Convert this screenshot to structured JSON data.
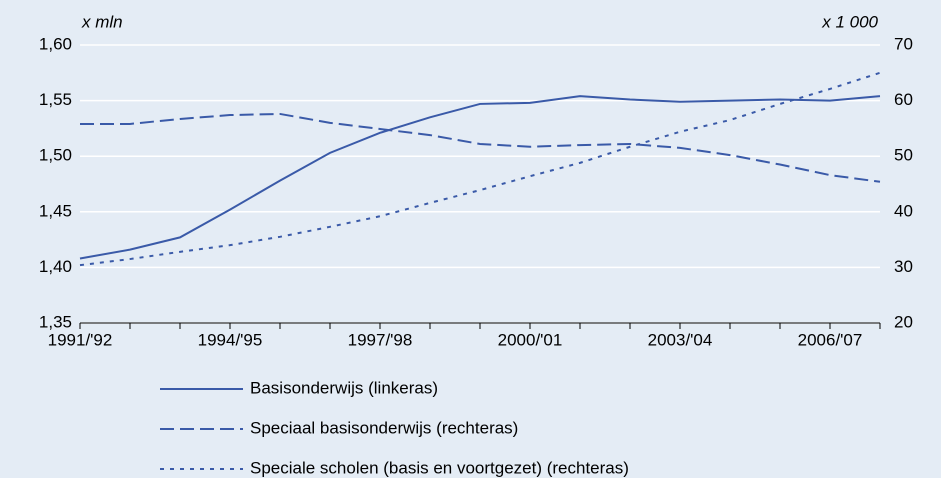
{
  "chart_data": {
    "type": "line",
    "y_label": "x mln",
    "y2_label": "x 1 000",
    "categories": [
      "1991/'92",
      null,
      null,
      "1994/'95",
      null,
      null,
      "1997/'98",
      null,
      null,
      "2000/'01",
      null,
      null,
      "2003/'04",
      null,
      null,
      "2006/'07",
      null
    ],
    "ylim": [
      1.35,
      1.6
    ],
    "yticks": [
      {
        "value": 1.35,
        "label": "1,35"
      },
      {
        "value": 1.4,
        "label": "1,40"
      },
      {
        "value": 1.45,
        "label": "1,45"
      },
      {
        "value": 1.5,
        "label": "1,50"
      },
      {
        "value": 1.55,
        "label": "1,55"
      },
      {
        "value": 1.6,
        "label": "1,60"
      }
    ],
    "y2lim": [
      20,
      70
    ],
    "y2ticks": [
      20,
      30,
      40,
      50,
      60,
      70
    ],
    "grid": true,
    "legend": "bottom",
    "series": [
      {
        "name": "Basisonderwijs (linkeras)",
        "color": "#3a5aa8",
        "dash": "solid",
        "values": [
          1.408,
          1.416,
          1.427,
          1.452,
          1.478,
          1.503,
          1.521,
          1.535,
          1.547,
          1.548,
          1.554,
          1.551,
          1.549,
          1.55,
          1.551,
          1.55,
          1.554
        ]
      },
      {
        "name": "Speciaal basisonderwijs (rechteras)",
        "color": "#3a5aa8",
        "dash": "dashed",
        "axis": "y2",
        "values": [
          55.8,
          55.8,
          56.7,
          57.4,
          57.6,
          56.0,
          54.9,
          53.8,
          52.2,
          51.7,
          52.0,
          52.2,
          51.5,
          50.2,
          48.5,
          46.6,
          45.4
        ]
      },
      {
        "name": "Speciale scholen (basis en voortgezet) (rechteras)",
        "color": "#3a5aa8",
        "dash": "dotted",
        "axis": "y2",
        "values": [
          30.4,
          31.5,
          32.8,
          34.0,
          35.5,
          37.3,
          39.2,
          41.6,
          43.9,
          46.4,
          48.8,
          51.7,
          54.4,
          56.5,
          59.4,
          62.1,
          65.0
        ]
      }
    ]
  }
}
